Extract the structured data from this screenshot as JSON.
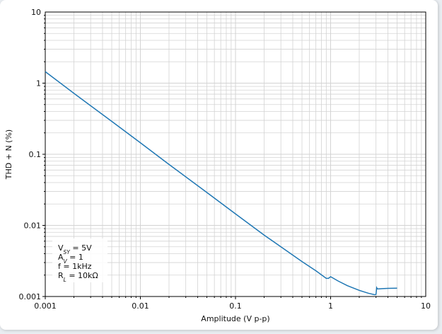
{
  "chart_data": {
    "type": "line",
    "xscale": "log",
    "yscale": "log",
    "xlim": [
      0.001,
      10
    ],
    "ylim": [
      0.001,
      10
    ],
    "xlabel": "Amplitude (V p-p)",
    "ylabel": "THD + N (%)",
    "x_ticks": [
      0.001,
      0.01,
      0.1,
      1,
      10
    ],
    "x_tick_labels": [
      "0.001",
      "0.01",
      "0.1",
      "1",
      "10"
    ],
    "y_ticks": [
      0.001,
      0.01,
      0.1,
      1,
      10
    ],
    "y_tick_labels": [
      "0.001",
      "0.01",
      "0.1",
      "1",
      "10"
    ],
    "grid": true,
    "line_color": "#1f77b4",
    "annotations": [
      {
        "main": "V",
        "sub": "SY",
        "rest": " = 5V"
      },
      {
        "main": "A",
        "sub": "V",
        "rest": " = 1"
      },
      {
        "main": "f = 1kHz",
        "sub": "",
        "rest": ""
      },
      {
        "main": "R",
        "sub": "L",
        "rest": " = 10kΩ"
      }
    ],
    "series": [
      {
        "x": [
          0.001,
          0.002,
          0.005,
          0.01,
          0.02,
          0.05,
          0.1,
          0.2,
          0.3,
          0.5,
          0.7,
          0.9,
          0.95,
          1.0,
          1.2,
          1.5,
          2.0,
          2.5,
          2.9,
          3.0,
          3.05,
          3.1,
          3.2,
          3.5,
          4.0,
          5.0
        ],
        "y": [
          1.45,
          0.72,
          0.29,
          0.145,
          0.072,
          0.029,
          0.0145,
          0.0073,
          0.005,
          0.0031,
          0.0023,
          0.0018,
          0.0018,
          0.0019,
          0.00165,
          0.00142,
          0.00122,
          0.00111,
          0.00106,
          0.00107,
          0.00133,
          0.00128,
          0.00128,
          0.00129,
          0.0013,
          0.00131
        ]
      }
    ]
  }
}
